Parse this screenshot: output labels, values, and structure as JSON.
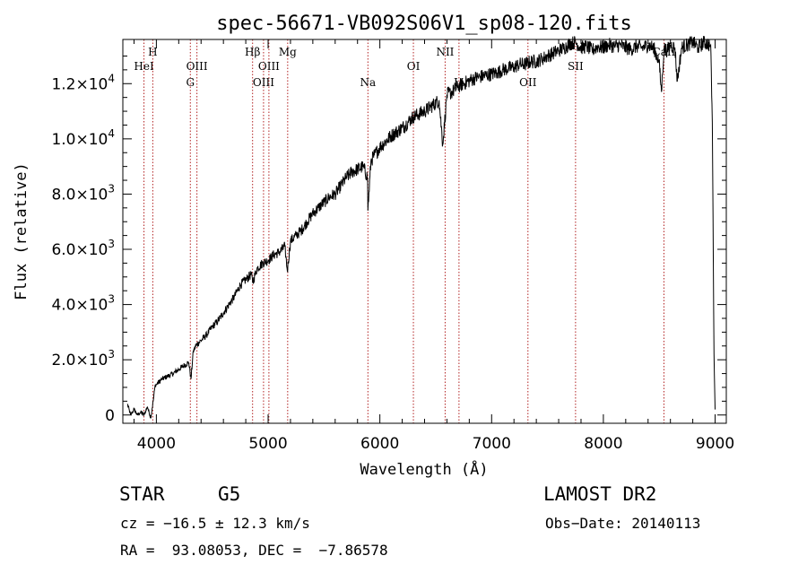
{
  "chart_data": {
    "type": "line",
    "title": "spec-56671-VB092S06V1_sp08-120.fits",
    "xlabel": "Wavelength (Å)",
    "ylabel": "Flux (relative)",
    "xlim": [
      3700,
      9100
    ],
    "ylim": [
      -300,
      13600
    ],
    "x_ticks": [
      4000,
      5000,
      6000,
      7000,
      8000,
      9000
    ],
    "x_tick_labels": [
      "4000",
      "5000",
      "6000",
      "7000",
      "8000",
      "9000"
    ],
    "y_ticks": [
      0,
      2000,
      4000,
      6000,
      8000,
      10000,
      12000
    ],
    "y_tick_labels": [
      {
        "mantissa": "0",
        "exp": ""
      },
      {
        "mantissa": "2.0×10",
        "exp": "3"
      },
      {
        "mantissa": "4.0×10",
        "exp": "3"
      },
      {
        "mantissa": "6.0×10",
        "exp": "3"
      },
      {
        "mantissa": "8.0×10",
        "exp": "3"
      },
      {
        "mantissa": "1.0×10",
        "exp": "4"
      },
      {
        "mantissa": "1.2×10",
        "exp": "4"
      }
    ],
    "grid": false,
    "series": [
      {
        "color": "#000000",
        "x": [
          3740,
          3770,
          3800,
          3830,
          3860,
          3890,
          3920,
          3950,
          3975,
          3990,
          4000,
          4050,
          4100,
          4150,
          4200,
          4250,
          4290,
          4310,
          4330,
          4360,
          4400,
          4450,
          4500,
          4550,
          4600,
          4650,
          4700,
          4750,
          4800,
          4850,
          4861,
          4900,
          4950,
          5000,
          5050,
          5100,
          5150,
          5172,
          5200,
          5250,
          5300,
          5350,
          5400,
          5450,
          5500,
          5550,
          5600,
          5650,
          5700,
          5750,
          5800,
          5850,
          5890,
          5893,
          5920,
          5950,
          6000,
          6050,
          6100,
          6150,
          6200,
          6250,
          6300,
          6350,
          6400,
          6450,
          6500,
          6530,
          6563,
          6600,
          6650,
          6700,
          6750,
          6800,
          6850,
          6900,
          6950,
          7000,
          7050,
          7100,
          7150,
          7200,
          7250,
          7300,
          7350,
          7400,
          7450,
          7500,
          7550,
          7600,
          7650,
          7700,
          7750,
          7800,
          7850,
          7900,
          7950,
          8000,
          8050,
          8100,
          8150,
          8200,
          8250,
          8300,
          8350,
          8400,
          8450,
          8498,
          8520,
          8542,
          8570,
          8600,
          8640,
          8662,
          8700,
          8750,
          8800,
          8850,
          8900,
          8950,
          8960,
          8975,
          8990,
          9000
        ],
        "y": [
          400,
          0,
          200,
          0,
          100,
          0,
          300,
          -100,
          600,
          1100,
          1100,
          1300,
          1400,
          1500,
          1650,
          1800,
          1900,
          1300,
          2300,
          2550,
          2700,
          2900,
          3200,
          3400,
          3700,
          4000,
          4300,
          4700,
          4900,
          5100,
          4800,
          5300,
          5500,
          5600,
          5800,
          5900,
          6100,
          5200,
          6300,
          6500,
          6700,
          7000,
          7300,
          7500,
          7700,
          7900,
          8000,
          8300,
          8600,
          8800,
          8900,
          9000,
          8600,
          7400,
          9200,
          9400,
          9700,
          9900,
          10100,
          10250,
          10400,
          10600,
          10800,
          10900,
          11000,
          11150,
          11300,
          11400,
          9800,
          11600,
          11700,
          11900,
          12000,
          12100,
          12200,
          12250,
          12300,
          12350,
          12400,
          12500,
          12550,
          12600,
          12700,
          12700,
          12800,
          12800,
          12900,
          13000,
          13100,
          13200,
          13300,
          13450,
          13500,
          13300,
          13350,
          13200,
          13350,
          13300,
          13400,
          13350,
          13400,
          13300,
          13250,
          13350,
          13300,
          13400,
          13300,
          12800,
          11700,
          13300,
          13200,
          13400,
          13300,
          12100,
          13300,
          13400,
          13500,
          13300,
          13500,
          13400,
          13400,
          10600,
          2200,
          200
        ]
      }
    ],
    "line_markers": [
      {
        "name": "HeI",
        "x": 3889,
        "row": 1
      },
      {
        "name": "H",
        "x": 3968,
        "row": 0
      },
      {
        "name": "G",
        "x": 4304,
        "row": 2
      },
      {
        "name": "OIII",
        "x": 4363,
        "row": 1
      },
      {
        "name": "Hβ",
        "x": 4861,
        "row": 0
      },
      {
        "name": "OIII",
        "x": 4959,
        "row": 2
      },
      {
        "name": "OIII",
        "x": 5007,
        "row": 1
      },
      {
        "name": "Mg",
        "x": 5175,
        "row": 0
      },
      {
        "name": "Na",
        "x": 5893,
        "row": 2
      },
      {
        "name": "OI",
        "x": 6300,
        "row": 1
      },
      {
        "name": "NII",
        "x": 6584,
        "row": 0
      },
      {
        "name": "Li",
        "x": 6708,
        "row": 2
      },
      {
        "name": "OII",
        "x": 7325,
        "row": 2
      },
      {
        "name": "SII",
        "x": 7751,
        "row": 1
      },
      {
        "name": "CaII",
        "x": 8542,
        "row": 0
      }
    ]
  },
  "info": {
    "object_class": "STAR",
    "subclass": "G5",
    "survey": "LAMOST DR2",
    "redshift": "cz = −16.5 ± 12.3 km/s",
    "obs_date": "Obs−Date: 20140113",
    "coords": "RA =  93.08053, DEC =  −7.86578"
  },
  "colors": {
    "line_marker": "#b22222",
    "spectrum": "#000000",
    "axes": "#000000"
  }
}
